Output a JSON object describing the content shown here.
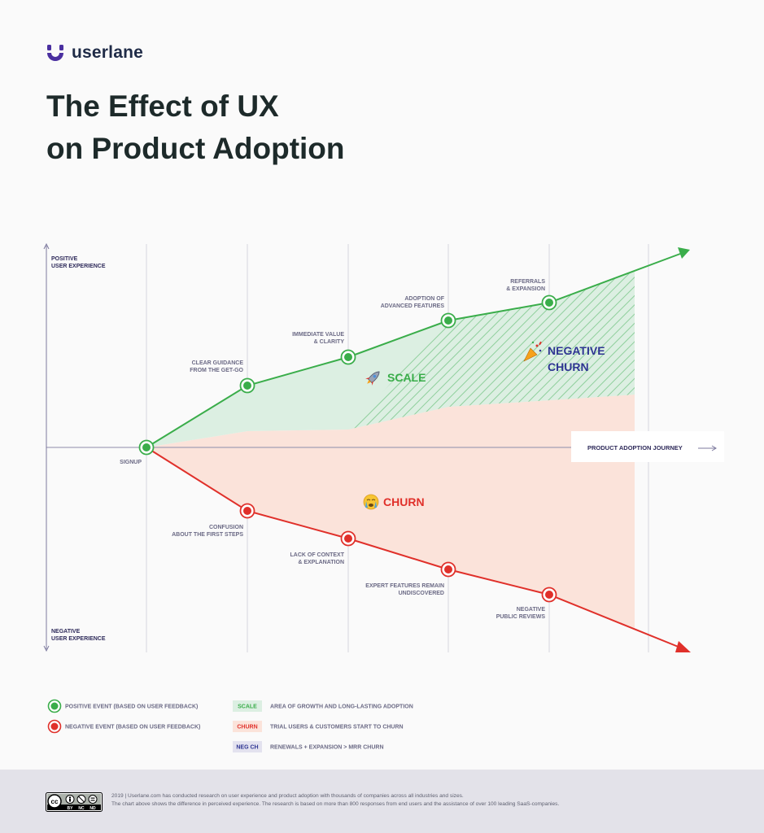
{
  "brand": {
    "name": "userlane"
  },
  "title": {
    "line1": "The Effect of UX",
    "line2": "on Product Adoption"
  },
  "colors": {
    "positive": "#3aad4a",
    "negative": "#e0302a",
    "scale_fill": "#dcefe2",
    "churn_fill": "#fbe3da",
    "neg_churn_text": "#2e3592",
    "axis": "#7d7a9e"
  },
  "axes": {
    "positive": [
      "POSITIVE",
      "USER EXPERIENCE"
    ],
    "negative": [
      "NEGATIVE",
      "USER EXPERIENCE"
    ],
    "journey": "PRODUCT ADOPTION  JOURNEY"
  },
  "start": {
    "label": "SIGNUP"
  },
  "positive_events": [
    {
      "lines": [
        "CLEAR GUIDANCE",
        "FROM THE GET-GO"
      ]
    },
    {
      "lines": [
        "IMMEDIATE VALUE",
        "& CLARITY"
      ]
    },
    {
      "lines": [
        "ADOPTION OF",
        "ADVANCED FEATURES"
      ]
    },
    {
      "lines": [
        "REFERRALS",
        "& EXPANSION"
      ]
    }
  ],
  "negative_events": [
    {
      "lines": [
        "CONFUSION",
        "ABOUT THE FIRST STEPS"
      ]
    },
    {
      "lines": [
        "LACK OF CONTEXT",
        "& EXPLANATION"
      ]
    },
    {
      "lines": [
        "EXPERT FEATURES REMAIN",
        "UNDISCOVERED"
      ]
    },
    {
      "lines": [
        "NEGATIVE",
        "PUBLIC REVIEWS"
      ]
    }
  ],
  "zones": {
    "scale": {
      "icon": "rocket-icon",
      "label": "SCALE"
    },
    "churn": {
      "icon": "crying-face-icon",
      "label": "CHURN"
    },
    "negative_churn": {
      "icon": "party-popper-icon",
      "lines": [
        "NEGATIVE",
        "CHURN"
      ]
    }
  },
  "legend": {
    "positive": "POSITIVE EVENT (BASED ON USER FEEDBACK)",
    "negative": "NEGATIVE EVENT (BASED ON USER FEEDBACK)",
    "zones": [
      {
        "tag": "SCALE",
        "text": "AREA OF GROWTH AND LONG-LASTING ADOPTION"
      },
      {
        "tag": "CHURN",
        "text": "TRIAL USERS & CUSTOMERS START TO CHURN"
      },
      {
        "tag": "NEG CH",
        "text": "RENEWALS + EXPANSION > MRR CHURN"
      }
    ]
  },
  "footer": {
    "badge": [
      "cc",
      "BY",
      "NC",
      "ND"
    ],
    "line1": "2019 | Userlane.com has conducted research on user experience and product adoption with thousands of companies across all industries and sizes.",
    "line2": "The chart above shows the difference in perceived experience. The research is based on more than 800 responses from end users and the assistance of over 100 leading SaaS-companies."
  }
}
